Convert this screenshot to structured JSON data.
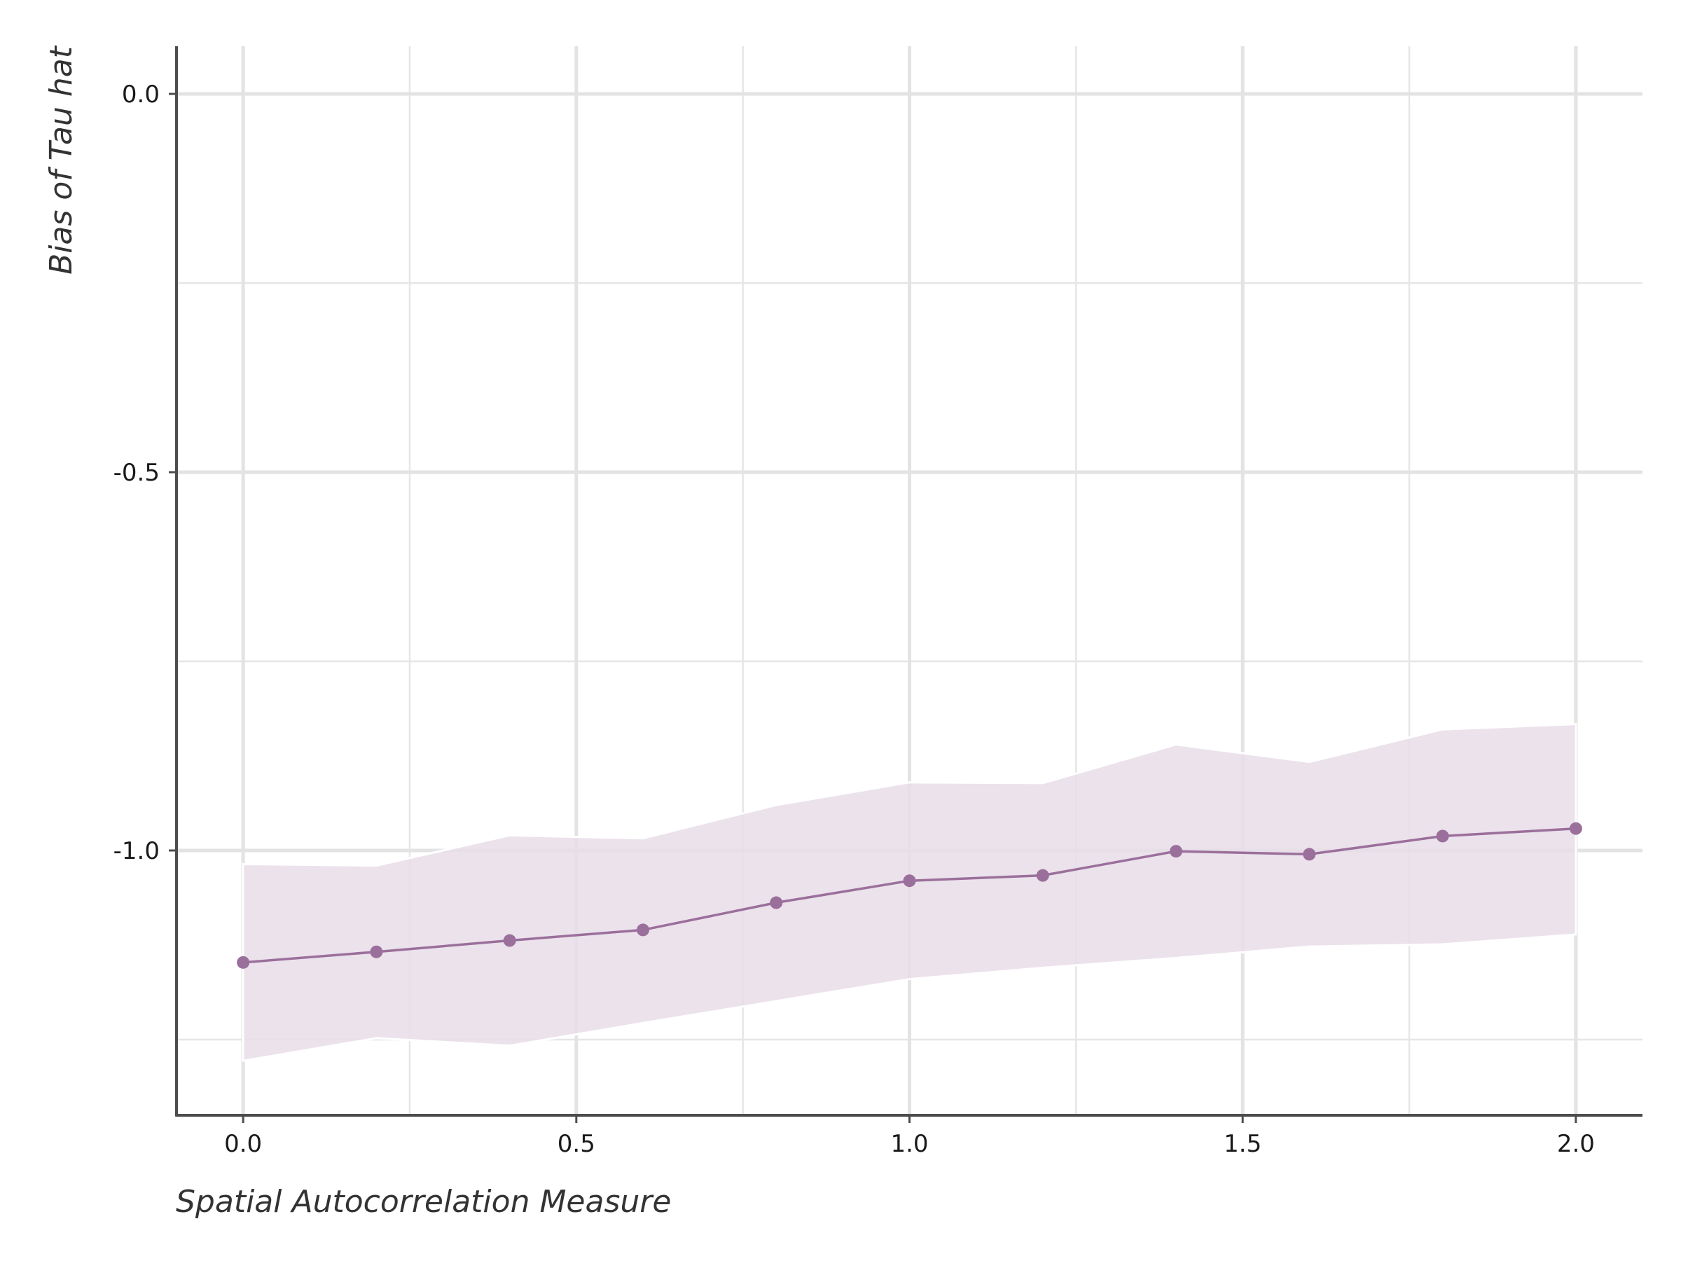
{
  "chart_data": {
    "type": "line",
    "title": "",
    "xlabel": "Spatial Autocorrelation Measure",
    "ylabel": "Bias of Tau hat",
    "xlim": [
      -0.1,
      2.1
    ],
    "ylim": [
      -1.35,
      0.063
    ],
    "x_ticks": [
      0.0,
      0.5,
      1.0,
      1.5,
      2.0
    ],
    "x_tick_labels": [
      "0.0",
      "0.5",
      "1.0",
      "1.5",
      "2.0"
    ],
    "y_ticks": [
      0.0,
      -0.5,
      -1.0
    ],
    "y_tick_labels": [
      "0.0",
      "-0.5",
      "-1.0"
    ],
    "y_minor_ticks": [
      -0.25,
      -0.75,
      -1.25
    ],
    "x_minor_ticks": [
      0.25,
      0.75,
      1.25,
      1.75
    ],
    "grid": true,
    "line_color": "#9b6f9b",
    "ribbon_color": "#e8dde7",
    "series": [
      {
        "x": [
          0.0,
          0.2,
          0.4,
          0.6,
          0.8,
          1.0,
          1.2,
          1.4,
          1.6,
          1.8,
          2.0
        ],
        "y": [
          -1.148,
          -1.134,
          -1.119,
          -1.105,
          -1.069,
          -1.04,
          -1.033,
          -1.001,
          -1.005,
          -0.981,
          -0.971
        ],
        "lower": [
          -1.278,
          -1.248,
          -1.258,
          -1.228,
          -1.199,
          -1.17,
          -1.155,
          -1.142,
          -1.127,
          -1.124,
          -1.111
        ],
        "upper": [
          -1.018,
          -1.02,
          -0.98,
          -0.984,
          -0.94,
          -0.91,
          -0.911,
          -0.86,
          -0.883,
          -0.84,
          -0.833
        ]
      }
    ]
  }
}
